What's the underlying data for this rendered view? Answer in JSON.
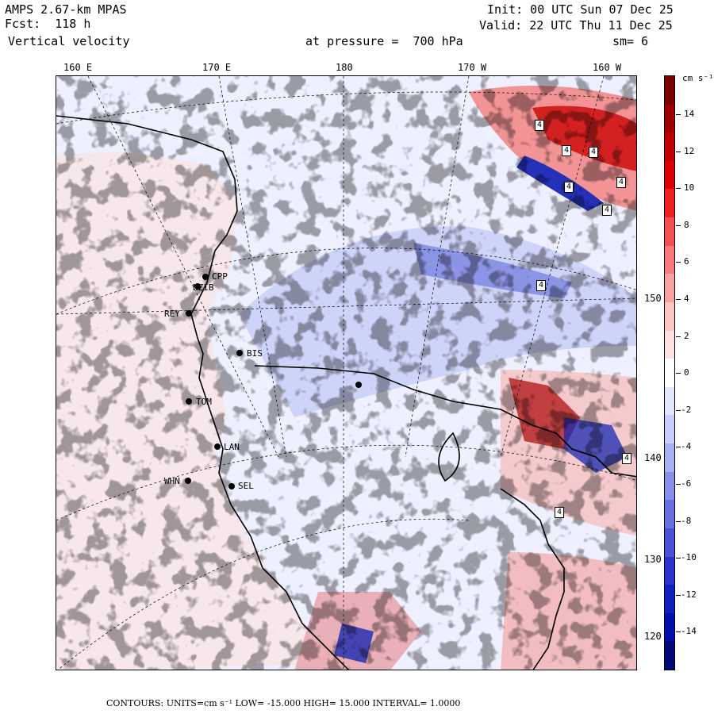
{
  "header": {
    "model": "AMPS 2.67-km MPAS",
    "forecast": "Fcst:  118 h",
    "field": "Vertical velocity",
    "init": "Init: 00 UTC Sun 07 Dec 25",
    "valid": "Valid: 22 UTC Thu 11 Dec 25",
    "level": "at pressure =  700 hPa",
    "smoothing": "sm= 6"
  },
  "axes": {
    "longitude_labels": [
      "160 E",
      "170 E",
      "180",
      "170 W",
      "160 W"
    ],
    "latitude_labels": [
      "150 W",
      "140 W",
      "130 W",
      "120 W"
    ]
  },
  "colorbar": {
    "units_label": "cm s⁻¹",
    "tick_labels": [
      "14",
      "12",
      "10",
      "8",
      "6",
      "4",
      "2",
      "0",
      "-2",
      "-4",
      "-6",
      "-8",
      "-10",
      "-12",
      "-14"
    ],
    "colors": [
      "#7a0000",
      "#9e0000",
      "#c00000",
      "#dc0000",
      "#ee2020",
      "#f45050",
      "#f87a7a",
      "#fba0a0",
      "#fdc4c4",
      "#fee0e0",
      "#ffffff",
      "#e2e6ff",
      "#c8ceff",
      "#a8b0f4",
      "#8890ea",
      "#6870e0",
      "#4a52d8",
      "#2a34cc",
      "#1020c0",
      "#0010a8",
      "#00087a"
    ]
  },
  "stations": [
    {
      "code": "CPP"
    },
    {
      "code": "NZIB"
    },
    {
      "code": "REY"
    },
    {
      "code": "BIS"
    },
    {
      "code": "TOM"
    },
    {
      "code": "LAN"
    },
    {
      "code": "WHN"
    },
    {
      "code": "SEL"
    }
  ],
  "highlow_markers": [
    "4",
    "4",
    "4",
    "4",
    "4",
    "4",
    "4",
    "4",
    "4"
  ],
  "footer": {
    "contours": "CONTOURS:  UNITS=cm s⁻¹  LOW=  -15.000      HIGH=  15.000      INTERVAL=   1.0000"
  }
}
